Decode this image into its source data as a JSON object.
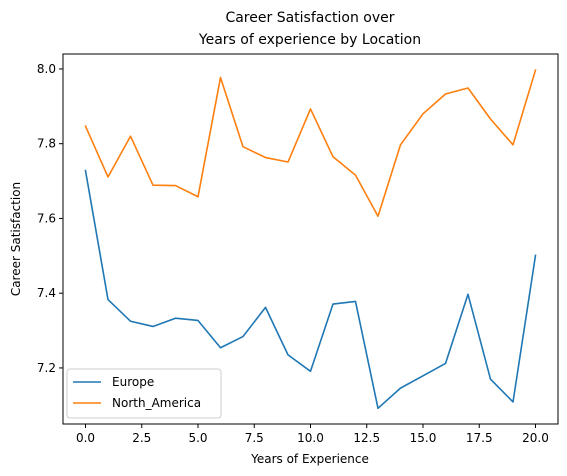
{
  "chart_data": {
    "type": "line",
    "title_lines": [
      "Career Satisfaction over",
      "Years of experience by Location"
    ],
    "xlabel": "Years of Experience",
    "ylabel": "Career Satisfaction",
    "xlim": [
      -1,
      21
    ],
    "ylim": [
      7.05,
      8.04
    ],
    "xticks": [
      0,
      2.5,
      5,
      7.5,
      10,
      12.5,
      15,
      17.5,
      20
    ],
    "xtick_labels": [
      "0.0",
      "2.5",
      "5.0",
      "7.5",
      "10.0",
      "12.5",
      "15.0",
      "17.5",
      "20.0"
    ],
    "yticks": [
      7.2,
      7.4,
      7.6,
      7.8,
      8.0
    ],
    "ytick_labels": [
      "7.2",
      "7.4",
      "7.6",
      "7.8",
      "8.0"
    ],
    "grid": false,
    "legend_position": "lower-left",
    "x": [
      0,
      1,
      2,
      3,
      4,
      5,
      6,
      7,
      8,
      9,
      10,
      11,
      12,
      13,
      14,
      15,
      16,
      17,
      18,
      19,
      20
    ],
    "series": [
      {
        "name": "Europe",
        "color": "#1f77b4",
        "values": [
          7.728,
          7.383,
          7.325,
          7.311,
          7.333,
          7.327,
          7.254,
          7.284,
          7.362,
          7.235,
          7.191,
          7.371,
          7.378,
          7.092,
          7.146,
          7.179,
          7.212,
          7.397,
          7.17,
          7.109,
          7.501
        ]
      },
      {
        "name": "North_America",
        "color": "#ff7f0e",
        "values": [
          7.847,
          7.711,
          7.82,
          7.689,
          7.688,
          7.658,
          7.977,
          7.792,
          7.763,
          7.751,
          7.893,
          7.765,
          7.716,
          7.606,
          7.797,
          7.88,
          7.933,
          7.949,
          7.866,
          7.797,
          7.997
        ]
      }
    ]
  }
}
